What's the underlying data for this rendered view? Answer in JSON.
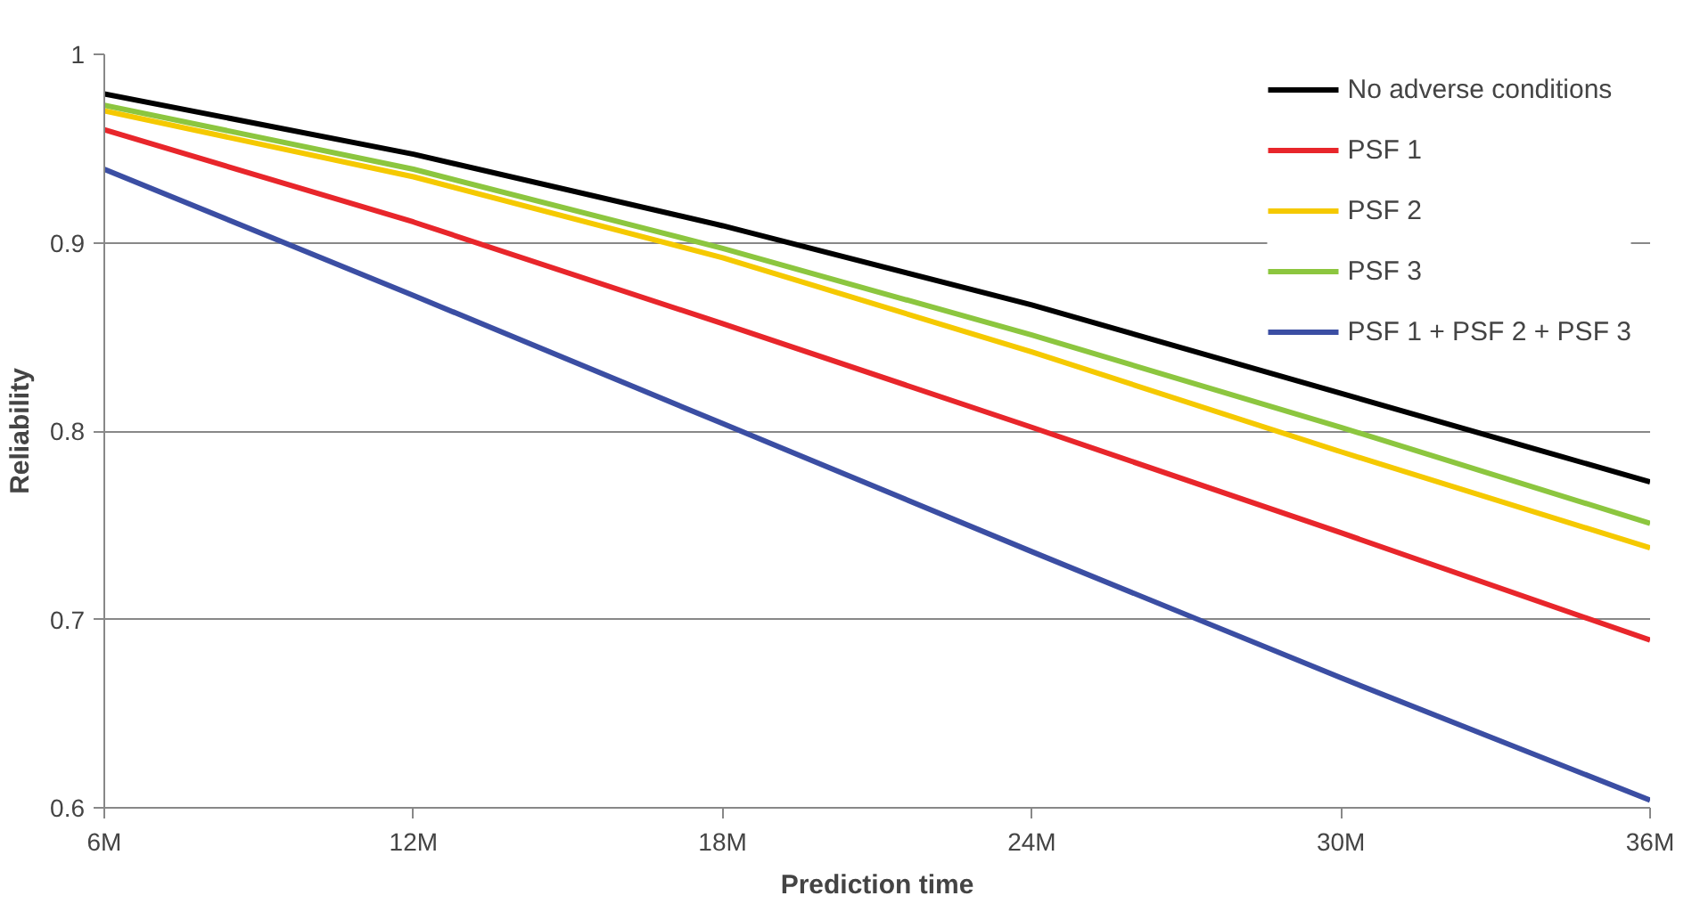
{
  "chart_data": {
    "type": "line",
    "xlabel": "Prediction time",
    "ylabel": "Reliability",
    "categories": [
      "6M",
      "12M",
      "18M",
      "24M",
      "30M",
      "36M"
    ],
    "series": [
      {
        "name": "No adverse conditions",
        "color": "#000000",
        "values": [
          0.979,
          0.947,
          0.909,
          0.867,
          0.82,
          0.773
        ]
      },
      {
        "name": "PSF 1",
        "color": "#e8262b",
        "values": [
          0.96,
          0.911,
          0.857,
          0.802,
          0.746,
          0.689
        ]
      },
      {
        "name": "PSF 2",
        "color": "#f5c900",
        "values": [
          0.97,
          0.935,
          0.892,
          0.842,
          0.789,
          0.738
        ]
      },
      {
        "name": "PSF 3",
        "color": "#8cc63f",
        "values": [
          0.973,
          0.939,
          0.897,
          0.851,
          0.802,
          0.751
        ]
      },
      {
        "name": "PSF 1 + PSF 2 + PSF 3",
        "color": "#3b4ea3",
        "values": [
          0.939,
          0.872,
          0.804,
          0.736,
          0.669,
          0.604
        ]
      }
    ],
    "ylim": [
      0.6,
      1
    ],
    "yticks": [
      0.6,
      0.7,
      0.8,
      0.9,
      1
    ],
    "grid": "y",
    "legend": "top right",
    "marker": "none",
    "line_style": "solid"
  }
}
